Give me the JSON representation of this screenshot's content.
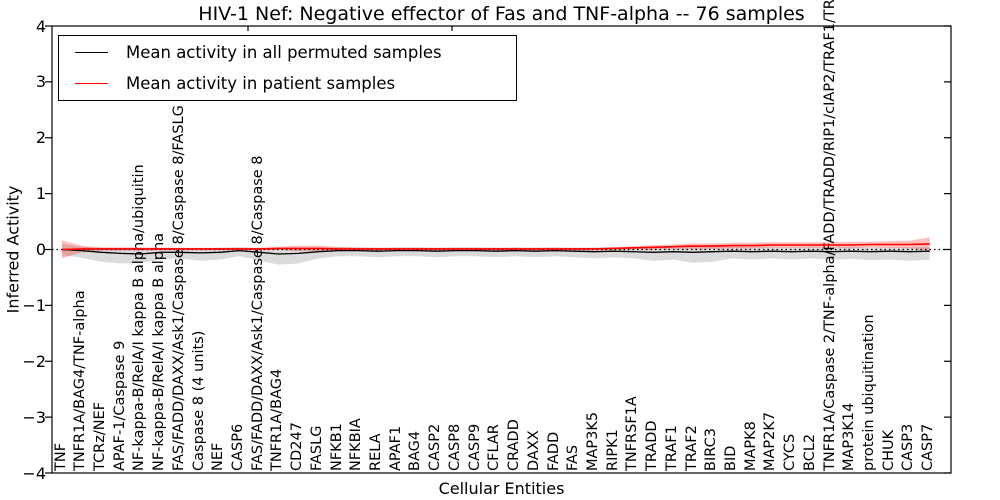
{
  "title": "HIV-1 Nef: Negative effector of Fas and TNF-alpha -- 76 samples",
  "legend": {
    "entries": [
      {
        "label": "Mean activity in all permuted samples",
        "color": "#000000"
      },
      {
        "label": "Mean activity in patient samples",
        "color": "#ff0000"
      }
    ]
  },
  "axes": {
    "ylabel": "Inferred Activity",
    "xlabel": "Cellular Entities",
    "y_tick_labels": [
      "4",
      "3",
      "2",
      "1",
      "0",
      "−1",
      "−2",
      "−3",
      "−4"
    ],
    "ylim": [
      -4,
      4
    ]
  },
  "chart_data": {
    "type": "line",
    "title": "HIV-1 Nef: Negative effector of Fas and TNF-alpha -- 76 samples",
    "xlabel": "Cellular Entities",
    "ylabel": "Inferred Activity",
    "ylim": [
      -4,
      4
    ],
    "grid": false,
    "legend_position": "upper left",
    "zero_line": {
      "style": "dotted",
      "color": "#000000",
      "y": 0
    },
    "categories": [
      "TNF",
      "TNFR1A/BAG4/TNF-alpha",
      "TCRz/NEF",
      "APAF-1/Caspase 9",
      "NF-kappa-B/RelA/I kappa B alpha/ubiquitin",
      "NF-kappa-B/RelA/I kappa B alpha",
      "FAS/FADD/DAXX/Ask1/Caspase 8/Caspase 8/FASLG",
      "Caspase 8 (4 units)",
      "NEF",
      "CASP6",
      "FAS/FADD/DAXX/Ask1/Caspase 8/Caspase 8",
      "TNFR1A/BAG4",
      "CD247",
      "FASLG",
      "NFKB1",
      "NFKBIA",
      "RELA",
      "APAF1",
      "BAG4",
      "CASP2",
      "CASP8",
      "CASP9",
      "CFLAR",
      "CRADD",
      "DAXX",
      "FADD",
      "FAS",
      "MAP3K5",
      "RIPK1",
      "TNFRSF1A",
      "TRADD",
      "TRAF1",
      "TRAF2",
      "BIRC3",
      "BID",
      "MAPK8",
      "MAP2K7",
      "CYCS",
      "BCL2",
      "TNFR1A/Caspase 2/TNF-alpha/FADD/TRADD/RIP1/cIAP2/TRAF1/TRAF2",
      "MAP3K14",
      "protein ubiquitination",
      "CHUK",
      "CASP3",
      "CASP7"
    ],
    "series": [
      {
        "name": "Mean activity in all permuted samples",
        "color": "#000000",
        "band_color": "rgba(0,0,0,0.14)",
        "values": [
          0.0,
          -0.02,
          -0.05,
          -0.07,
          -0.08,
          -0.05,
          -0.05,
          -0.06,
          -0.05,
          -0.02,
          -0.05,
          -0.08,
          -0.07,
          -0.04,
          -0.02,
          -0.02,
          -0.03,
          -0.02,
          -0.02,
          -0.03,
          -0.02,
          -0.02,
          -0.03,
          -0.02,
          -0.03,
          -0.02,
          -0.03,
          -0.04,
          -0.03,
          -0.04,
          -0.05,
          -0.04,
          -0.05,
          -0.04,
          -0.03,
          -0.04,
          -0.03,
          -0.04,
          -0.03,
          -0.04,
          -0.03,
          -0.04,
          -0.03,
          -0.04,
          -0.03
        ],
        "band_upper": [
          0.1,
          0.05,
          0.03,
          0.02,
          0.02,
          0.03,
          0.03,
          0.02,
          0.03,
          0.04,
          0.03,
          0.02,
          0.02,
          0.03,
          0.04,
          0.04,
          0.03,
          0.04,
          0.04,
          0.03,
          0.04,
          0.04,
          0.03,
          0.04,
          0.03,
          0.04,
          0.03,
          0.03,
          0.04,
          0.03,
          0.03,
          0.04,
          0.06,
          0.08,
          0.05,
          0.04,
          0.04,
          0.04,
          0.05,
          0.04,
          0.04,
          0.04,
          0.04,
          0.04,
          0.04
        ],
        "band_lower": [
          -0.1,
          -0.15,
          -0.22,
          -0.25,
          -0.24,
          -0.18,
          -0.16,
          -0.2,
          -0.18,
          -0.12,
          -0.2,
          -0.27,
          -0.25,
          -0.16,
          -0.12,
          -0.12,
          -0.14,
          -0.12,
          -0.12,
          -0.14,
          -0.12,
          -0.12,
          -0.14,
          -0.12,
          -0.14,
          -0.12,
          -0.14,
          -0.16,
          -0.14,
          -0.16,
          -0.2,
          -0.18,
          -0.24,
          -0.22,
          -0.16,
          -0.18,
          -0.16,
          -0.18,
          -0.16,
          -0.18,
          -0.17,
          -0.19,
          -0.18,
          -0.2,
          -0.18
        ]
      },
      {
        "name": "Mean activity in patient samples",
        "color": "#ff0000",
        "band_color": "rgba(255,0,0,0.25)",
        "values": [
          0.0,
          0.01,
          0.01,
          0.01,
          0.01,
          0.01,
          0.01,
          0.01,
          0.01,
          0.01,
          0.01,
          0.02,
          0.02,
          0.02,
          0.01,
          0.01,
          0.01,
          0.01,
          0.01,
          0.01,
          0.01,
          0.01,
          0.01,
          0.01,
          0.01,
          0.01,
          0.01,
          0.01,
          0.02,
          0.03,
          0.04,
          0.05,
          0.06,
          0.06,
          0.07,
          0.07,
          0.08,
          0.08,
          0.08,
          0.08,
          0.08,
          0.09,
          0.09,
          0.09,
          0.1
        ],
        "band_upper": [
          0.16,
          0.07,
          0.04,
          0.04,
          0.04,
          0.03,
          0.03,
          0.03,
          0.03,
          0.03,
          0.03,
          0.05,
          0.07,
          0.07,
          0.05,
          0.03,
          0.03,
          0.03,
          0.03,
          0.03,
          0.03,
          0.03,
          0.03,
          0.03,
          0.03,
          0.03,
          0.03,
          0.03,
          0.04,
          0.06,
          0.08,
          0.09,
          0.11,
          0.11,
          0.12,
          0.12,
          0.13,
          0.13,
          0.13,
          0.13,
          0.14,
          0.14,
          0.15,
          0.16,
          0.22
        ],
        "band_lower": [
          -0.16,
          -0.05,
          -0.02,
          -0.02,
          -0.02,
          -0.01,
          -0.01,
          -0.01,
          -0.01,
          -0.01,
          -0.01,
          -0.01,
          -0.03,
          -0.03,
          -0.03,
          -0.01,
          -0.01,
          -0.01,
          -0.01,
          -0.01,
          -0.01,
          -0.01,
          -0.01,
          -0.01,
          -0.01,
          -0.01,
          -0.01,
          -0.01,
          0.0,
          0.0,
          0.0,
          0.01,
          0.01,
          0.01,
          0.02,
          0.02,
          0.03,
          0.03,
          0.03,
          0.03,
          0.02,
          0.04,
          0.03,
          0.02,
          -0.02
        ]
      }
    ]
  }
}
